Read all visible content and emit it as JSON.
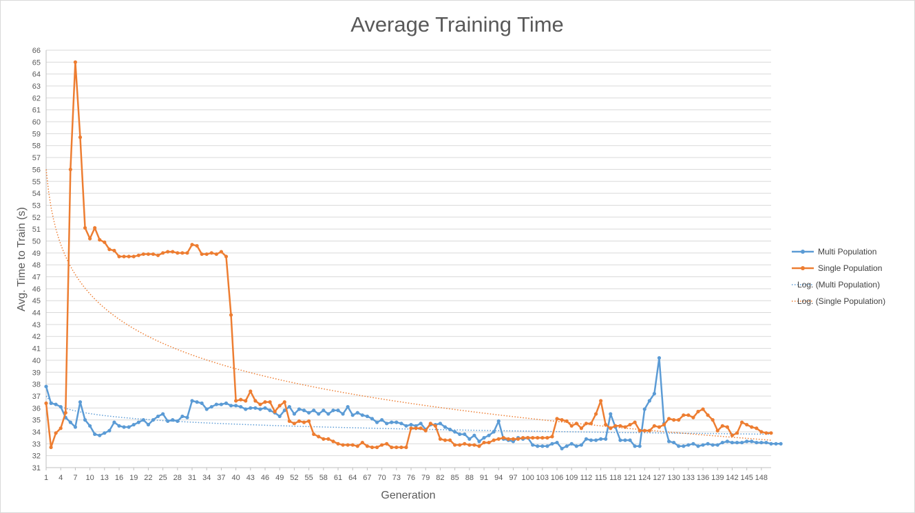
{
  "chart_data": {
    "type": "line",
    "title": "Average Training Time",
    "xlabel": "Generation",
    "ylabel": "Avg. Time to Train (s)",
    "ylim": [
      31,
      66
    ],
    "ytick_step": 1,
    "xlim": [
      1,
      150
    ],
    "x_tick_labels": [
      1,
      4,
      7,
      10,
      13,
      16,
      19,
      22,
      25,
      28,
      31,
      34,
      37,
      40,
      43,
      46,
      49,
      52,
      55,
      58,
      61,
      64,
      67,
      70,
      73,
      76,
      79,
      82,
      85,
      88,
      91,
      94,
      97,
      100,
      103,
      106,
      109,
      112,
      115,
      118,
      121,
      124,
      127,
      130,
      133,
      136,
      139,
      142,
      145,
      148
    ],
    "grid": true,
    "legend_position": "right",
    "colors": {
      "multi": "#5b9bd5",
      "single": "#ed7d31",
      "grid": "#d9d9d9",
      "axis": "#bfbfbf",
      "text": "#595959"
    },
    "series": [
      {
        "name": "Multi Population",
        "color": "#5b9bd5",
        "values": [
          37.8,
          36.4,
          36.3,
          36.1,
          35.2,
          34.8,
          34.4,
          36.5,
          35.0,
          34.5,
          33.8,
          33.7,
          33.9,
          34.1,
          34.8,
          34.5,
          34.4,
          34.4,
          34.6,
          34.8,
          35.0,
          34.6,
          35.0,
          35.3,
          35.5,
          34.9,
          35.0,
          34.9,
          35.3,
          35.2,
          36.6,
          36.5,
          36.4,
          35.9,
          36.1,
          36.3,
          36.3,
          36.4,
          36.2,
          36.2,
          36.1,
          35.9,
          36.0,
          36.0,
          35.9,
          36.0,
          35.8,
          35.6,
          35.3,
          35.8,
          36.1,
          35.5,
          35.9,
          35.8,
          35.6,
          35.8,
          35.5,
          35.8,
          35.5,
          35.8,
          35.8,
          35.5,
          36.1,
          35.4,
          35.6,
          35.4,
          35.3,
          35.1,
          34.8,
          35.0,
          34.7,
          34.8,
          34.8,
          34.7,
          34.5,
          34.6,
          34.5,
          34.7,
          34.2,
          34.6,
          34.6,
          34.7,
          34.4,
          34.2,
          34.0,
          33.8,
          33.8,
          33.4,
          33.7,
          33.2,
          33.5,
          33.7,
          34.0,
          34.9,
          33.4,
          33.3,
          33.2,
          33.5,
          33.4,
          33.5,
          32.9,
          32.8,
          32.8,
          32.8,
          33.0,
          33.1,
          32.6,
          32.8,
          33.0,
          32.8,
          32.9,
          33.4,
          33.3,
          33.3,
          33.4,
          33.4,
          35.5,
          34.4,
          33.3,
          33.3,
          33.3,
          32.8,
          32.8,
          35.9,
          36.6,
          37.2,
          40.2,
          34.7,
          33.2,
          33.1,
          32.8,
          32.8,
          32.9,
          33.0,
          32.8,
          32.9,
          33.0,
          32.9,
          32.9,
          33.1,
          33.2,
          33.1,
          33.1,
          33.1,
          33.2,
          33.2,
          33.1,
          33.1,
          33.1,
          33.0,
          33.0,
          33.0
        ],
        "trendline": {
          "name": "Log. (Multi Population)",
          "start": 37.0,
          "end": 33.8
        }
      },
      {
        "name": "Single Population",
        "color": "#ed7d31",
        "values": [
          36.4,
          32.7,
          33.9,
          34.3,
          35.6,
          56.0,
          65.0,
          58.7,
          51.1,
          50.2,
          51.1,
          50.1,
          49.9,
          49.3,
          49.2,
          48.7,
          48.7,
          48.7,
          48.7,
          48.8,
          48.9,
          48.9,
          48.9,
          48.8,
          49.0,
          49.1,
          49.1,
          49.0,
          49.0,
          49.0,
          49.7,
          49.6,
          48.9,
          48.9,
          49.0,
          48.9,
          49.1,
          48.7,
          43.8,
          36.6,
          36.7,
          36.6,
          37.4,
          36.6,
          36.3,
          36.5,
          36.5,
          35.7,
          36.2,
          36.5,
          34.9,
          34.7,
          34.9,
          34.8,
          34.9,
          33.8,
          33.6,
          33.4,
          33.4,
          33.2,
          33.0,
          32.9,
          32.9,
          32.9,
          32.8,
          33.1,
          32.8,
          32.7,
          32.7,
          32.9,
          33.0,
          32.7,
          32.7,
          32.7,
          32.7,
          34.3,
          34.3,
          34.3,
          34.1,
          34.7,
          34.5,
          33.4,
          33.3,
          33.3,
          32.9,
          32.9,
          33.0,
          32.9,
          32.9,
          32.8,
          33.1,
          33.1,
          33.3,
          33.4,
          33.5,
          33.4,
          33.4,
          33.4,
          33.5,
          33.5,
          33.5,
          33.5,
          33.5,
          33.5,
          33.6,
          35.1,
          35.0,
          34.9,
          34.5,
          34.7,
          34.3,
          34.7,
          34.7,
          35.5,
          36.6,
          34.6,
          34.3,
          34.5,
          34.5,
          34.4,
          34.6,
          34.8,
          34.1,
          34.1,
          34.1,
          34.5,
          34.4,
          34.6,
          35.1,
          35.0,
          35.0,
          35.4,
          35.4,
          35.2,
          35.7,
          35.9,
          35.4,
          35.0,
          34.1,
          34.5,
          34.4,
          33.7,
          33.9,
          34.8,
          34.6,
          34.4,
          34.3,
          34.0,
          33.9,
          33.9
        ],
        "trendline": {
          "name": "Log. (Single Population)",
          "start": 56.0,
          "end": 33.3
        }
      }
    ]
  }
}
